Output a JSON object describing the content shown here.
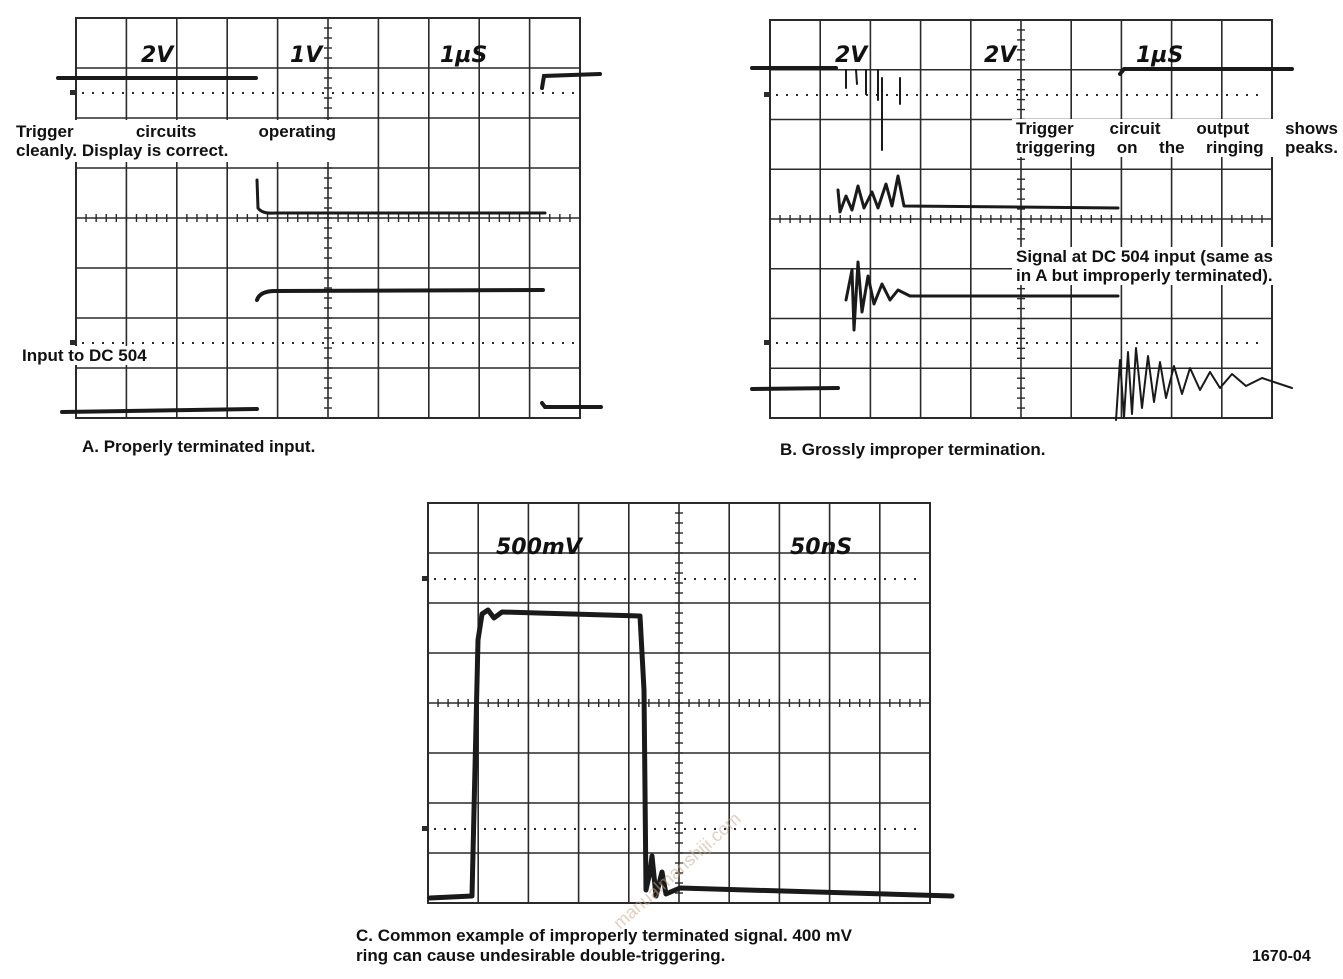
{
  "panel_a": {
    "scales": [
      "2V",
      "1V",
      "1µS"
    ],
    "trigger_note_line1": "Trigger circuits operating",
    "trigger_note_line2": "cleanly. Display is correct.",
    "input_label": "Input to DC 504",
    "caption": "A. Properly terminated input."
  },
  "panel_b": {
    "scales": [
      "2V",
      "2V",
      "1µS"
    ],
    "trigger_note_line1": "Trigger circuit output shows",
    "trigger_note_line2": "triggering on the ringing peaks.",
    "signal_note_line1": "Signal at DC 504 input (same as",
    "signal_note_line2": "in A but improperly terminated).",
    "caption": "B. Grossly improper termination."
  },
  "panel_c": {
    "scales": [
      "500mV",
      "50nS"
    ],
    "caption_line1": "C. Common example of improperly terminated signal. 400 mV",
    "caption_line2": "ring can cause undesirable double-triggering."
  },
  "figure_number": "1670-04",
  "watermark": "manualmanshiji.com",
  "colors": {
    "trace": "#1a1a1a",
    "grid": "#2a2a2a",
    "background": "#ffffff"
  }
}
